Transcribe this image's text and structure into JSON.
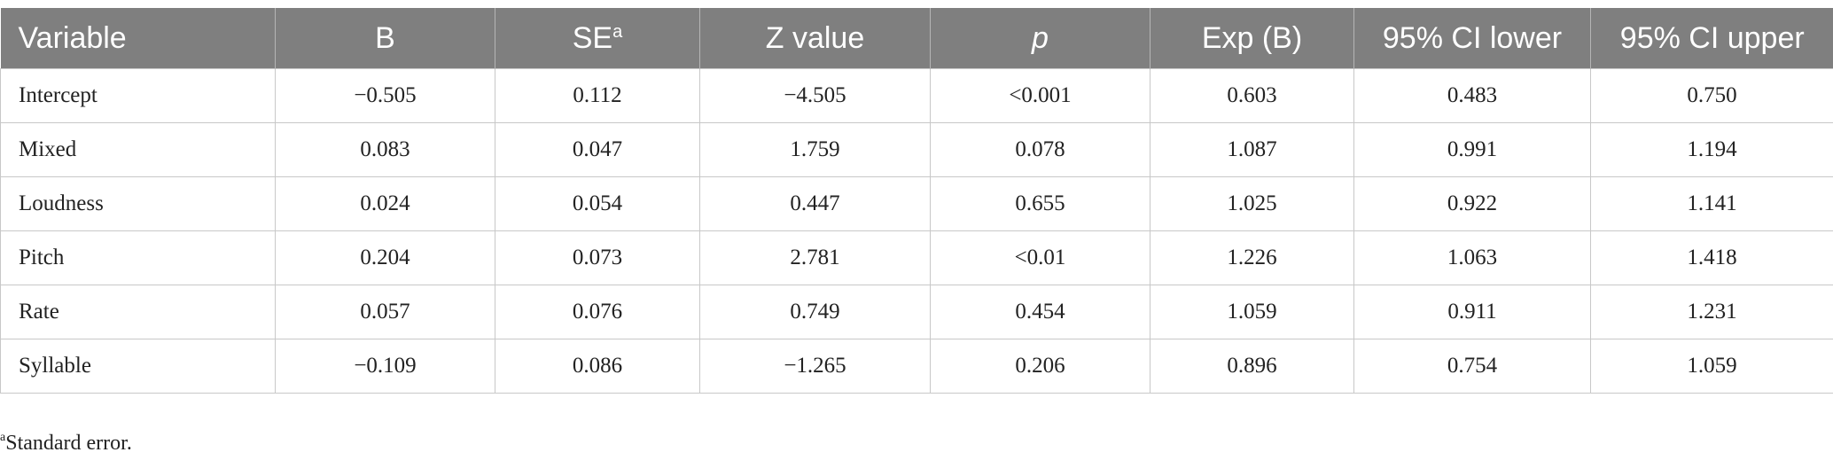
{
  "table": {
    "header": [
      "Variable",
      "B",
      "SE",
      "Z value",
      "p",
      "Exp (B)",
      "95% CI lower",
      "95% CI upper"
    ],
    "header_sup": "a",
    "rows": [
      [
        "Intercept",
        "−0.505",
        "0.112",
        "−4.505",
        "<0.001",
        "0.603",
        "0.483",
        "0.750"
      ],
      [
        "Mixed",
        "0.083",
        "0.047",
        "1.759",
        "0.078",
        "1.087",
        "0.991",
        "1.194"
      ],
      [
        "Loudness",
        "0.024",
        "0.054",
        "0.447",
        "0.655",
        "1.025",
        "0.922",
        "1.141"
      ],
      [
        "Pitch",
        "0.204",
        "0.073",
        "2.781",
        "<0.01",
        "1.226",
        "1.063",
        "1.418"
      ],
      [
        "Rate",
        "0.057",
        "0.076",
        "0.749",
        "0.454",
        "1.059",
        "0.911",
        "1.231"
      ],
      [
        "Syllable",
        "−0.109",
        "0.086",
        "−1.265",
        "0.206",
        "0.896",
        "0.754",
        "1.059"
      ]
    ]
  },
  "footnote": {
    "marker": "a",
    "text": "Standard error."
  }
}
